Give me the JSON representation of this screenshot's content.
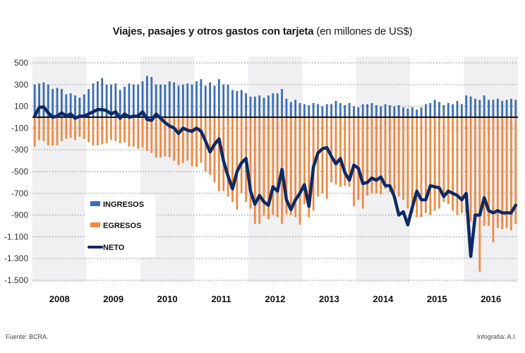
{
  "chart_data": {
    "type": "bar",
    "title": "Viajes, pasajes y otros gastos con tarjeta",
    "subtitle": "(en millones de US$)",
    "xlabel": "",
    "ylabel": "",
    "ylim": [
      -1500,
      500
    ],
    "yticks": [
      500,
      300,
      100,
      -100,
      -300,
      -500,
      -700,
      -900,
      -1100,
      -1300,
      -1500
    ],
    "ytick_labels": [
      "500",
      "300",
      "100",
      "-100",
      "-300",
      "-500",
      "-700",
      "-900",
      "-1.100",
      "-1.300",
      "-1.500"
    ],
    "years": [
      "2008",
      "2009",
      "2010",
      "2011",
      "2012",
      "2013",
      "2014",
      "2015",
      "2016"
    ],
    "grid": true,
    "legend": {
      "position": "left",
      "entries": [
        "INGRESOS",
        "EGRESOS",
        "NETO"
      ]
    },
    "colors": {
      "ingresos": "#3a6db5",
      "egresos": "#ee8a43",
      "neto": "#0d2a66",
      "band": "#f0f0f2"
    },
    "series": [
      {
        "name": "INGRESOS",
        "type": "bar",
        "values": [
          300,
          310,
          320,
          300,
          260,
          270,
          260,
          210,
          220,
          200,
          180,
          210,
          260,
          310,
          330,
          360,
          300,
          300,
          310,
          250,
          280,
          310,
          300,
          300,
          330,
          380,
          370,
          300,
          300,
          300,
          330,
          320,
          290,
          300,
          310,
          300,
          330,
          350,
          290,
          320,
          290,
          350,
          300,
          300,
          250,
          240,
          250,
          220,
          190,
          190,
          200,
          180,
          200,
          220,
          220,
          260,
          170,
          140,
          160,
          130,
          120,
          110,
          130,
          120,
          100,
          120,
          120,
          150,
          130,
          110,
          130,
          100,
          90,
          120,
          120,
          130,
          110,
          100,
          120,
          110,
          100,
          110,
          90,
          80,
          90,
          70,
          90,
          120,
          130,
          160,
          140,
          110,
          130,
          120,
          150,
          120,
          200,
          190,
          170,
          160,
          200,
          160,
          160,
          170,
          150,
          160,
          170,
          160
        ]
      },
      {
        "name": "EGRESOS",
        "type": "bar",
        "values": [
          -270,
          -210,
          -220,
          -260,
          -260,
          -260,
          -220,
          -200,
          -190,
          -210,
          -180,
          -200,
          -230,
          -260,
          -260,
          -250,
          -240,
          -210,
          -220,
          -240,
          -230,
          -270,
          -270,
          -290,
          -280,
          -310,
          -330,
          -370,
          -370,
          -360,
          -370,
          -400,
          -440,
          -420,
          -400,
          -450,
          -460,
          -420,
          -500,
          -530,
          -600,
          -680,
          -680,
          -730,
          -780,
          -850,
          -700,
          -780,
          -840,
          -980,
          -980,
          -910,
          -940,
          -900,
          -920,
          -980,
          -890,
          -900,
          -920,
          -990,
          -800,
          -920,
          -860,
          -730,
          -700,
          -750,
          -600,
          -620,
          -640,
          -630,
          -640,
          -820,
          -760,
          -840,
          -720,
          -700,
          -700,
          -710,
          -660,
          -690,
          -700,
          -730,
          -760,
          -840,
          -880,
          -920,
          -920,
          -880,
          -900,
          -860,
          -840,
          -780,
          -800,
          -860,
          -900,
          -880,
          -880,
          -960,
          -930,
          -1420,
          -1000,
          -1000,
          -1150,
          -1020,
          -1030,
          -1020,
          -1040,
          -980
        ]
      },
      {
        "name": "NETO",
        "type": "line",
        "values": [
          10,
          90,
          95,
          40,
          0,
          10,
          40,
          10,
          30,
          -10,
          10,
          10,
          30,
          50,
          70,
          70,
          60,
          30,
          50,
          -10,
          30,
          0,
          10,
          10,
          50,
          -20,
          -30,
          30,
          -10,
          -50,
          -80,
          -100,
          -150,
          -100,
          -120,
          -130,
          -100,
          -130,
          -220,
          -320,
          -250,
          -200,
          -400,
          -540,
          -660,
          -500,
          -420,
          -380,
          -680,
          -800,
          -720,
          -780,
          -810,
          -640,
          -680,
          -480,
          -760,
          -850,
          -760,
          -700,
          -620,
          -820,
          -460,
          -330,
          -290,
          -280,
          -360,
          -430,
          -380,
          -510,
          -580,
          -440,
          -470,
          -610,
          -600,
          -560,
          -580,
          -550,
          -630,
          -630,
          -730,
          -900,
          -870,
          -990,
          -830,
          -680,
          -760,
          -760,
          -630,
          -640,
          -650,
          -730,
          -680,
          -700,
          -720,
          -760,
          -700,
          -1280,
          -900,
          -900,
          -740,
          -860,
          -880,
          -860,
          -880,
          -880,
          -880,
          -810
        ]
      }
    ]
  },
  "footer": {
    "source": "Fuente: BCRA.",
    "credit": "Infografía: A.I."
  }
}
